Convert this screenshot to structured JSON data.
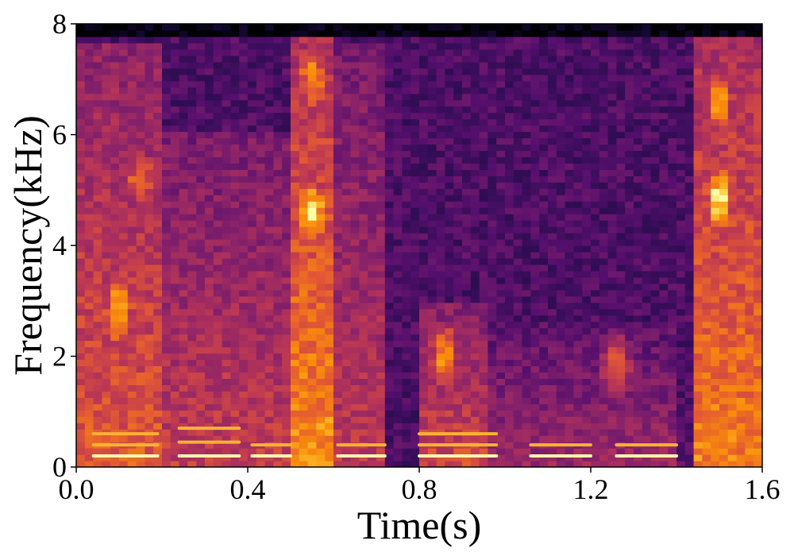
{
  "chart_data": {
    "type": "heatmap",
    "subtype": "spectrogram",
    "title": "",
    "xlabel": "Time(s)",
    "ylabel": "Frequency(kHz)",
    "xlim": [
      0.0,
      1.6
    ],
    "ylim": [
      0,
      8
    ],
    "x_ticks": [
      "0.0",
      "0.4",
      "0.8",
      "1.2",
      "1.6"
    ],
    "y_ticks": [
      "0",
      "2",
      "4",
      "6",
      "8"
    ],
    "colormap": "inferno",
    "colorbar": false,
    "grid": false,
    "energy_regions": [
      {
        "t0": 0.0,
        "t1": 0.2,
        "f0": 0.0,
        "f1": 7.6,
        "intensity": 0.72
      },
      {
        "t0": 0.2,
        "t1": 0.5,
        "f0": 0.0,
        "f1": 6.0,
        "intensity": 0.62
      },
      {
        "t0": 0.5,
        "t1": 0.6,
        "f0": 0.0,
        "f1": 7.8,
        "intensity": 0.85
      },
      {
        "t0": 0.6,
        "t1": 0.72,
        "f0": 0.0,
        "f1": 7.6,
        "intensity": 0.6
      },
      {
        "t0": 0.72,
        "t1": 0.8,
        "f0": 0.0,
        "f1": 7.6,
        "intensity": 0.28
      },
      {
        "t0": 0.8,
        "t1": 0.96,
        "f0": 0.0,
        "f1": 3.0,
        "intensity": 0.66
      },
      {
        "t0": 0.96,
        "t1": 1.1,
        "f0": 0.0,
        "f1": 2.6,
        "intensity": 0.5
      },
      {
        "t0": 1.1,
        "t1": 1.4,
        "f0": 0.0,
        "f1": 2.6,
        "intensity": 0.5
      },
      {
        "t0": 1.4,
        "t1": 1.44,
        "f0": 0.0,
        "f1": 7.6,
        "intensity": 0.3
      },
      {
        "t0": 1.44,
        "t1": 1.6,
        "f0": 0.0,
        "f1": 7.8,
        "intensity": 0.82
      }
    ],
    "formant_bursts": [
      {
        "t": 0.1,
        "f": 2.8,
        "intensity": 0.95
      },
      {
        "t": 0.15,
        "f": 5.2,
        "intensity": 0.8
      },
      {
        "t": 0.55,
        "f": 4.6,
        "intensity": 1.0
      },
      {
        "t": 0.55,
        "f": 7.0,
        "intensity": 0.85
      },
      {
        "t": 0.86,
        "f": 2.0,
        "intensity": 0.85
      },
      {
        "t": 1.26,
        "f": 1.8,
        "intensity": 0.75
      },
      {
        "t": 1.5,
        "f": 4.8,
        "intensity": 1.0
      },
      {
        "t": 1.5,
        "f": 6.6,
        "intensity": 0.85
      }
    ],
    "harmonic_bands": [
      {
        "t0": 0.04,
        "t1": 0.19,
        "freqs": [
          0.2,
          0.4,
          0.6
        ]
      },
      {
        "t0": 0.24,
        "t1": 0.38,
        "freqs": [
          0.2,
          0.45,
          0.7
        ]
      },
      {
        "t0": 0.41,
        "t1": 0.5,
        "freqs": [
          0.2,
          0.4
        ]
      },
      {
        "t0": 0.61,
        "t1": 0.72,
        "freqs": [
          0.2,
          0.4
        ]
      },
      {
        "t0": 0.8,
        "t1": 0.98,
        "freqs": [
          0.2,
          0.4,
          0.6
        ]
      },
      {
        "t0": 1.06,
        "t1": 1.2,
        "freqs": [
          0.2,
          0.4
        ]
      },
      {
        "t0": 1.26,
        "t1": 1.4,
        "freqs": [
          0.2,
          0.4
        ]
      }
    ]
  }
}
